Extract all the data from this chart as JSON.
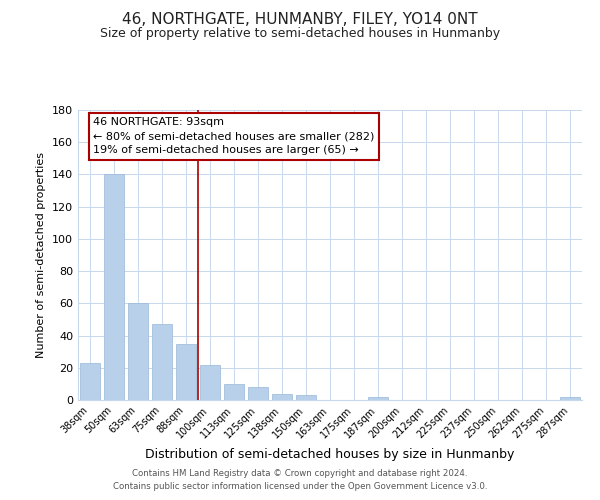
{
  "title": "46, NORTHGATE, HUNMANBY, FILEY, YO14 0NT",
  "subtitle": "Size of property relative to semi-detached houses in Hunmanby",
  "xlabel": "Distribution of semi-detached houses by size in Hunmanby",
  "ylabel": "Number of semi-detached properties",
  "bar_labels": [
    "38sqm",
    "50sqm",
    "63sqm",
    "75sqm",
    "88sqm",
    "100sqm",
    "113sqm",
    "125sqm",
    "138sqm",
    "150sqm",
    "163sqm",
    "175sqm",
    "187sqm",
    "200sqm",
    "212sqm",
    "225sqm",
    "237sqm",
    "250sqm",
    "262sqm",
    "275sqm",
    "287sqm"
  ],
  "bar_values": [
    23,
    140,
    60,
    47,
    35,
    22,
    10,
    8,
    4,
    3,
    0,
    0,
    2,
    0,
    0,
    0,
    0,
    0,
    0,
    0,
    2
  ],
  "bar_color": "#b8d0ea",
  "bar_edge_color": "#9ab8d8",
  "vline_x": 4.5,
  "vline_color": "#aa0000",
  "ylim": [
    0,
    180
  ],
  "yticks": [
    0,
    20,
    40,
    60,
    80,
    100,
    120,
    140,
    160,
    180
  ],
  "annotation_title": "46 NORTHGATE: 93sqm",
  "annotation_line1": "← 80% of semi-detached houses are smaller (282)",
  "annotation_line2": "19% of semi-detached houses are larger (65) →",
  "annotation_box_facecolor": "#ffffff",
  "annotation_box_edgecolor": "#aa0000",
  "footer_line1": "Contains HM Land Registry data © Crown copyright and database right 2024.",
  "footer_line2": "Contains public sector information licensed under the Open Government Licence v3.0.",
  "background_color": "#ffffff",
  "grid_color": "#c8d8ec",
  "title_fontsize": 11,
  "subtitle_fontsize": 9,
  "ylabel_fontsize": 8,
  "xlabel_fontsize": 9
}
